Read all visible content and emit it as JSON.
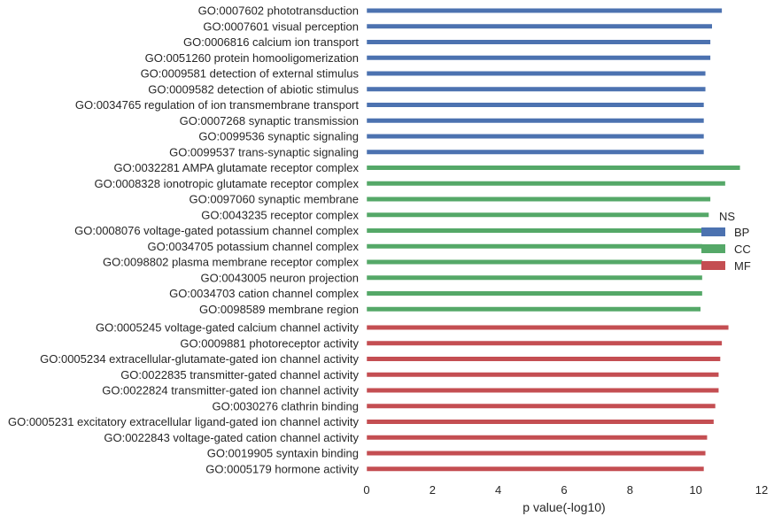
{
  "chart_data": {
    "type": "bar",
    "orientation": "horizontal",
    "title": "",
    "xlabel": "p value(-log10)",
    "ylabel": "",
    "xlim": [
      0,
      12
    ],
    "xticks": [
      0,
      2,
      4,
      6,
      8,
      10,
      12
    ],
    "grid": false,
    "legend": {
      "title": "NS",
      "placement": "right",
      "entries": [
        {
          "name": "BP",
          "color": "#4c72b0"
        },
        {
          "name": "CC",
          "color": "#55a868"
        },
        {
          "name": "MF",
          "color": "#c44e52"
        }
      ]
    },
    "categories": [
      {
        "label": "GO:0007602 phototransduction",
        "value": 10.8,
        "group": "BP"
      },
      {
        "label": "GO:0007601 visual perception",
        "value": 10.5,
        "group": "BP"
      },
      {
        "label": "GO:0006816 calcium ion transport",
        "value": 10.45,
        "group": "BP"
      },
      {
        "label": "GO:0051260 protein homooligomerization",
        "value": 10.45,
        "group": "BP"
      },
      {
        "label": "GO:0009581 detection of external stimulus",
        "value": 10.3,
        "group": "BP"
      },
      {
        "label": "GO:0009582 detection of abiotic stimulus",
        "value": 10.3,
        "group": "BP"
      },
      {
        "label": "GO:0034765 regulation of ion transmembrane transport",
        "value": 10.25,
        "group": "BP"
      },
      {
        "label": "GO:0007268 synaptic transmission",
        "value": 10.25,
        "group": "BP"
      },
      {
        "label": "GO:0099536 synaptic signaling",
        "value": 10.25,
        "group": "BP"
      },
      {
        "label": "GO:0099537 trans-synaptic signaling",
        "value": 10.25,
        "group": "BP"
      },
      {
        "label": "GO:0032281 AMPA glutamate receptor complex",
        "value": 11.35,
        "group": "CC"
      },
      {
        "label": "GO:0008328 ionotropic glutamate receptor complex",
        "value": 10.9,
        "group": "CC"
      },
      {
        "label": "GO:0097060 synaptic membrane",
        "value": 10.45,
        "group": "CC"
      },
      {
        "label": "GO:0043235 receptor complex",
        "value": 10.4,
        "group": "CC"
      },
      {
        "label": "GO:0008076 voltage-gated potassium channel complex",
        "value": 10.2,
        "group": "CC"
      },
      {
        "label": "GO:0034705 potassium channel complex",
        "value": 10.2,
        "group": "CC"
      },
      {
        "label": "GO:0098802 plasma membrane receptor complex",
        "value": 10.2,
        "group": "CC"
      },
      {
        "label": "GO:0043005 neuron projection",
        "value": 10.2,
        "group": "CC"
      },
      {
        "label": "GO:0034703 cation channel complex",
        "value": 10.2,
        "group": "CC"
      },
      {
        "label": "GO:0098589 membrane region",
        "value": 10.15,
        "group": "CC"
      },
      {
        "label": "GO:0005245 voltage-gated calcium channel activity",
        "value": 11.0,
        "group": "MF"
      },
      {
        "label": "GO:0009881 photoreceptor activity",
        "value": 10.8,
        "group": "MF"
      },
      {
        "label": "GO:0005234 extracellular-glutamate-gated ion channel activity",
        "value": 10.75,
        "group": "MF"
      },
      {
        "label": "GO:0022835 transmitter-gated channel activity",
        "value": 10.7,
        "group": "MF"
      },
      {
        "label": "GO:0022824 transmitter-gated ion channel activity",
        "value": 10.7,
        "group": "MF"
      },
      {
        "label": "GO:0030276 clathrin binding",
        "value": 10.6,
        "group": "MF"
      },
      {
        "label": "GO:0005231 excitatory extracellular ligand-gated ion channel activity",
        "value": 10.55,
        "group": "MF"
      },
      {
        "label": "GO:0022843 voltage-gated cation channel activity",
        "value": 10.35,
        "group": "MF"
      },
      {
        "label": "GO:0019905 syntaxin binding",
        "value": 10.3,
        "group": "MF"
      },
      {
        "label": "GO:0005179 hormone activity",
        "value": 10.25,
        "group": "MF"
      }
    ]
  }
}
